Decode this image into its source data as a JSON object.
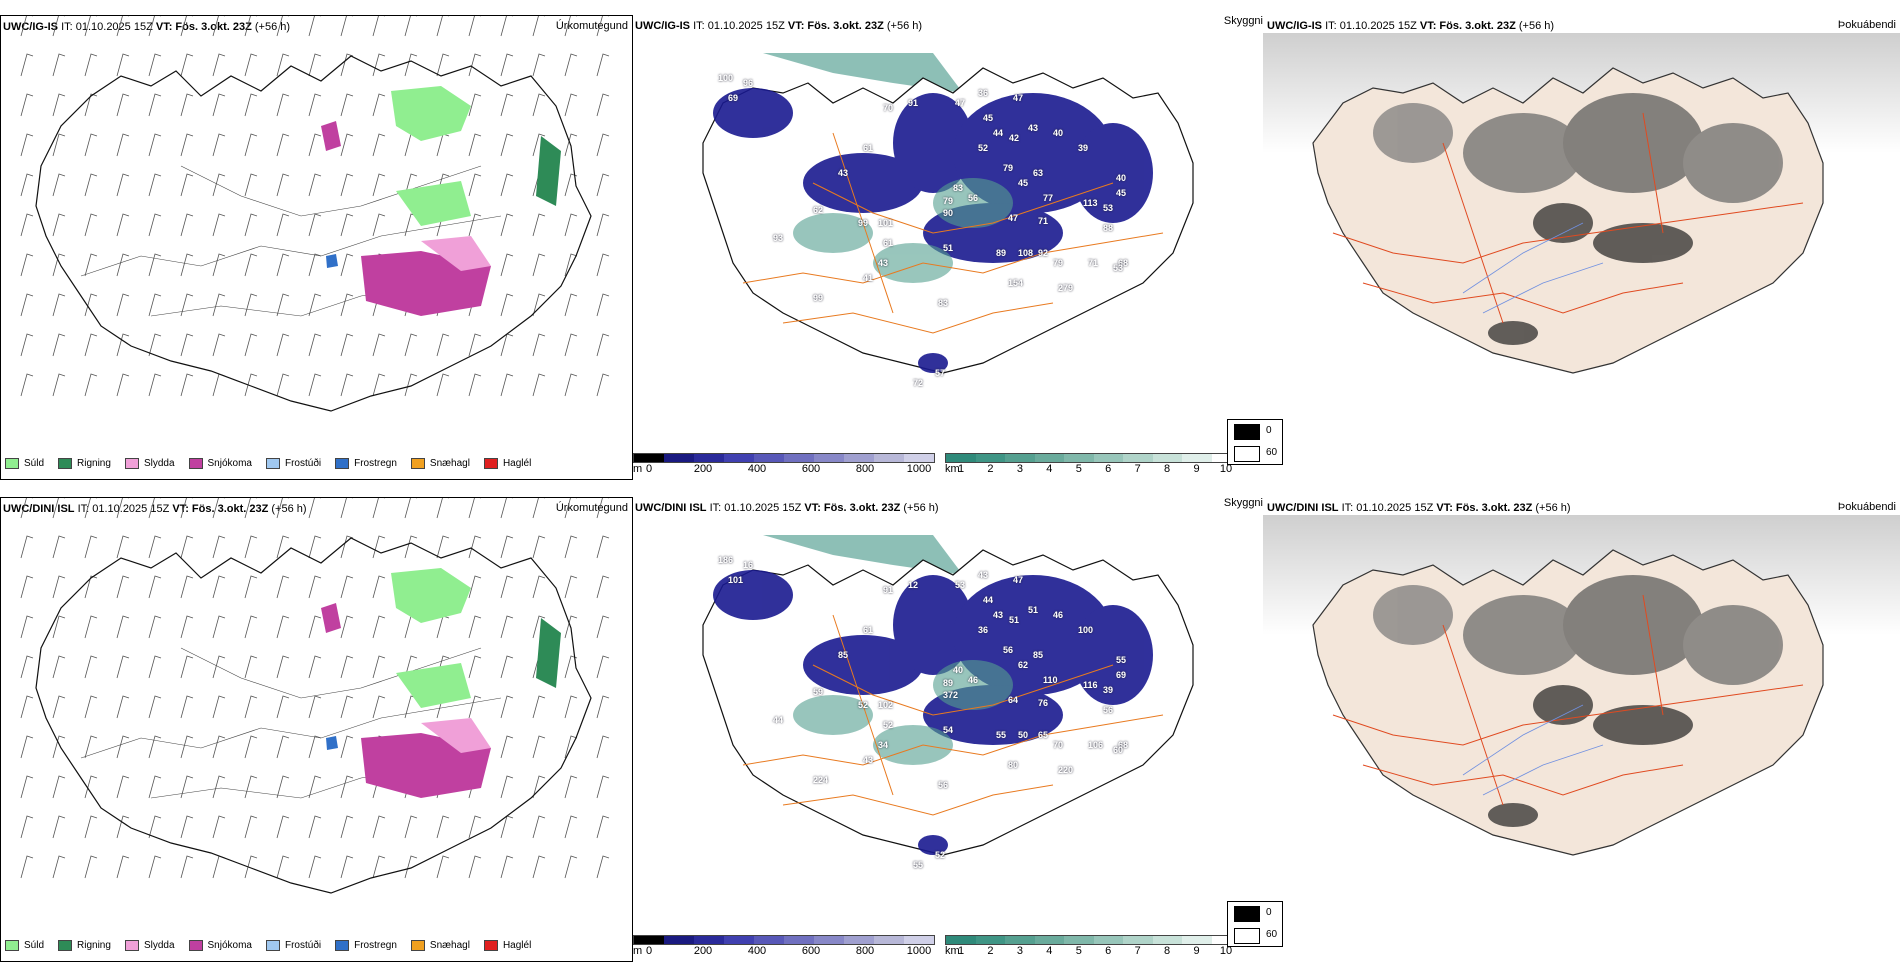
{
  "rows": [
    {
      "model": "UWC/IG-IS",
      "it": "IT: 01.10.2025 15Z",
      "vt": "VT: Fös. 3.okt. 23Z",
      "lead": "(+56 h)",
      "precip_title": "Úrkomutegund",
      "cloud_title": "Skyggni",
      "fog_title": "Þokuábendi",
      "visibility_labels": [
        "100",
        "96",
        "69",
        "43",
        "70",
        "91",
        "47",
        "36",
        "47",
        "45",
        "44",
        "42",
        "43",
        "40",
        "52",
        "79",
        "63",
        "39",
        "61",
        "83",
        "56",
        "45",
        "77",
        "113",
        "40",
        "45",
        "88",
        "53",
        "62",
        "99",
        "101",
        "79",
        "90",
        "47",
        "71",
        "68",
        "93",
        "61",
        "51",
        "89",
        "108",
        "92",
        "79",
        "71",
        "53",
        "43",
        "41",
        "154",
        "279",
        "99",
        "83",
        "72",
        "57"
      ]
    },
    {
      "model": "UWC/DINI ISL",
      "it": "IT: 01.10.2025 15Z",
      "vt": "VT: Fös. 3.okt. 23Z",
      "lead": "(+56 h)",
      "precip_title": "Úrkomutegund",
      "cloud_title": "Skyggni",
      "fog_title": "Þokuábendi",
      "visibility_labels": [
        "186",
        "16",
        "101",
        "85",
        "91",
        "12",
        "53",
        "43",
        "47",
        "44",
        "43",
        "51",
        "51",
        "46",
        "36",
        "56",
        "85",
        "100",
        "61",
        "40",
        "46",
        "62",
        "110",
        "116",
        "55",
        "69",
        "56",
        "39",
        "59",
        "52",
        "102",
        "89",
        "372",
        "64",
        "76",
        "68",
        "44",
        "52",
        "54",
        "55",
        "50",
        "65",
        "70",
        "106",
        "60",
        "34",
        "43",
        "80",
        "220",
        "224",
        "56",
        "55",
        "52"
      ]
    }
  ],
  "precip_legend": [
    {
      "label": "Súld",
      "color": "#90ee90"
    },
    {
      "label": "Rigning",
      "color": "#2e8b57"
    },
    {
      "label": "Slydda",
      "color": "#f0a0d8"
    },
    {
      "label": "Snjókoma",
      "color": "#c040a0"
    },
    {
      "label": "Frostúði",
      "color": "#a0c8f0"
    },
    {
      "label": "Frostregn",
      "color": "#3070c8"
    },
    {
      "label": "Snæhagl",
      "color": "#f0a020"
    },
    {
      "label": "Haglél",
      "color": "#e02020"
    }
  ],
  "ceiling_scale": {
    "unit": "m",
    "ticks": [
      "0",
      "200",
      "400",
      "600",
      "800",
      "1000"
    ],
    "colors": [
      "#000000",
      "#1a1a80",
      "#2a2a9a",
      "#4040b0",
      "#5858b8",
      "#7070c0",
      "#8888c8",
      "#a0a0d0",
      "#b8b8d8",
      "#d0d0e8"
    ]
  },
  "visibility_scale": {
    "unit": "km",
    "ticks": [
      "1",
      "2",
      "3",
      "4",
      "5",
      "6",
      "7",
      "8",
      "9",
      "10"
    ],
    "colors": [
      "#2f8a7a",
      "#3f9585",
      "#55a090",
      "#6aab9c",
      "#80b8aa",
      "#98c6ba",
      "#b0d4c9",
      "#c8e2d9",
      "#e0efea",
      "#ffffff"
    ]
  },
  "fog_scale": {
    "top": "0",
    "bottom": "60",
    "top_color": "#000000",
    "bottom_color": "#ffffff"
  },
  "colors": {
    "land_fog": "#f3e6da",
    "roads": "#e04a20",
    "roads_orange": "#e87a20",
    "sea_cloud": "#2f8a7a",
    "ceiling_blue": "#1a1a90"
  }
}
